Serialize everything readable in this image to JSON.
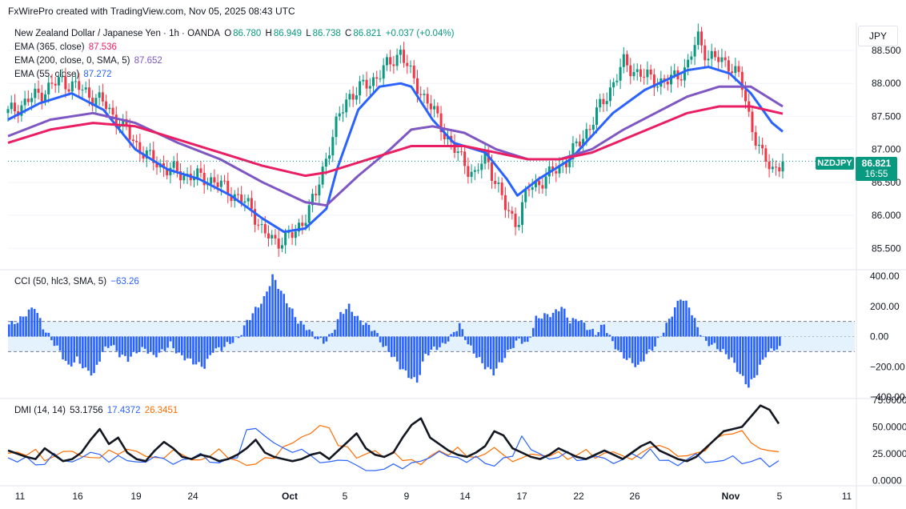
{
  "header": {
    "text": "FxWirePro created with TradingView.com, Nov 05, 2025 08:43 UTC"
  },
  "symbol": {
    "title": "New Zealand Dollar / Japanese Yen · 1h · OANDA",
    "o_label": "O",
    "o": "86.780",
    "h_label": "H",
    "h": "86.949",
    "l_label": "L",
    "l": "86.738",
    "c_label": "C",
    "c": "86.821",
    "change": "+0.037 (+0.04%)",
    "ticker": "NZDJPY",
    "last_price": "86.821",
    "countdown": "16:55",
    "currency": "JPY"
  },
  "indicators": {
    "ema365": {
      "label": "EMA (365, close)",
      "value": "87.536",
      "color": "#e91e63"
    },
    "ema200": {
      "label": "EMA (200, close, 0, SMA, 5)",
      "value": "87.652",
      "color": "#7e57c2"
    },
    "ema55": {
      "label": "EMA (55, close)",
      "value": "87.272",
      "color": "#2962ff"
    },
    "cci": {
      "label": "CCI (50, hlc3, SMA, 5)",
      "value": "−63.26",
      "color": "#2962ff"
    },
    "dmi": {
      "label": "DMI (14, 14)",
      "adx": "53.1756",
      "plus_di": "17.4372",
      "minus_di": "26.3451",
      "adx_color": "#131722",
      "plus_color": "#2962ff",
      "minus_color": "#ff6d00"
    }
  },
  "colors": {
    "up": "#089981",
    "down": "#f23645",
    "cci_fill": "#2962ff",
    "band": "#e3f2fd"
  },
  "chart_data": [
    {
      "type": "candlestick",
      "title": "New Zealand Dollar / Japanese Yen · 1h · OANDA",
      "ylim": [
        85.2,
        88.9
      ],
      "yticks": [
        "88.500",
        "88.000",
        "87.500",
        "87.000",
        "86.500",
        "86.000",
        "85.500"
      ],
      "ytick_values": [
        88.5,
        88.0,
        87.5,
        87.0,
        86.5,
        86.0,
        85.5
      ],
      "xticks": [
        "11",
        "16",
        "19",
        "24",
        "Oct",
        "5",
        "9",
        "14",
        "17",
        "22",
        "26",
        "Nov",
        "5",
        "11"
      ],
      "close_path": [
        [
          0,
          87.55
        ],
        [
          3,
          87.85
        ],
        [
          5,
          88.05
        ],
        [
          7,
          87.9
        ],
        [
          9,
          87.7
        ],
        [
          11,
          87.3
        ],
        [
          13,
          86.9
        ],
        [
          15,
          86.7
        ],
        [
          17,
          86.6
        ],
        [
          19,
          86.55
        ],
        [
          21,
          86.35
        ],
        [
          23,
          86.1
        ],
        [
          24,
          85.75
        ],
        [
          25,
          85.6
        ],
        [
          27,
          85.7
        ],
        [
          29,
          86.3
        ],
        [
          30,
          86.9
        ],
        [
          31,
          87.4
        ],
        [
          32,
          87.8
        ],
        [
          34,
          88.0
        ],
        [
          36,
          88.3
        ],
        [
          37,
          88.5
        ],
        [
          38,
          88.1
        ],
        [
          40,
          87.6
        ],
        [
          41,
          87.3
        ],
        [
          42,
          87.0
        ],
        [
          43,
          86.8
        ],
        [
          44,
          86.6
        ],
        [
          45,
          86.9
        ],
        [
          46,
          86.5
        ],
        [
          47,
          86.05
        ],
        [
          48,
          85.9
        ],
        [
          49,
          86.4
        ],
        [
          51,
          86.6
        ],
        [
          53,
          86.9
        ],
        [
          55,
          87.4
        ],
        [
          57,
          88.0
        ],
        [
          58,
          88.3
        ],
        [
          60,
          88.1
        ],
        [
          62,
          88.0
        ],
        [
          64,
          88.25
        ],
        [
          65,
          88.7
        ],
        [
          66,
          88.4
        ],
        [
          68,
          88.3
        ],
        [
          69,
          88.05
        ],
        [
          70,
          87.4
        ],
        [
          71,
          86.9
        ],
        [
          72,
          86.7
        ],
        [
          73,
          86.82
        ]
      ],
      "series": [
        {
          "name": "EMA (55, close)",
          "values": [
            [
              0,
              87.45
            ],
            [
              3,
              87.7
            ],
            [
              6,
              87.85
            ],
            [
              9,
              87.6
            ],
            [
              12,
              87.0
            ],
            [
              15,
              86.7
            ],
            [
              18,
              86.55
            ],
            [
              21,
              86.3
            ],
            [
              24,
              85.95
            ],
            [
              26,
              85.75
            ],
            [
              28,
              85.8
            ],
            [
              30,
              86.1
            ],
            [
              31,
              86.7
            ],
            [
              33,
              87.6
            ],
            [
              35,
              87.95
            ],
            [
              37,
              88.0
            ],
            [
              38,
              87.95
            ],
            [
              40,
              87.45
            ],
            [
              42,
              87.1
            ],
            [
              45,
              86.95
            ],
            [
              47,
              86.55
            ],
            [
              48,
              86.3
            ],
            [
              50,
              86.55
            ],
            [
              53,
              86.85
            ],
            [
              55,
              87.2
            ],
            [
              57,
              87.55
            ],
            [
              60,
              87.9
            ],
            [
              62,
              88.05
            ],
            [
              64,
              88.2
            ],
            [
              66,
              88.25
            ],
            [
              68,
              88.15
            ],
            [
              70,
              87.85
            ],
            [
              72,
              87.4
            ],
            [
              73,
              87.27
            ]
          ]
        },
        {
          "name": "EMA (200, close, 0, SMA, 5)",
          "values": [
            [
              0,
              87.2
            ],
            [
              4,
              87.45
            ],
            [
              8,
              87.55
            ],
            [
              12,
              87.4
            ],
            [
              16,
              87.1
            ],
            [
              20,
              86.85
            ],
            [
              24,
              86.5
            ],
            [
              28,
              86.2
            ],
            [
              30,
              86.15
            ],
            [
              33,
              86.6
            ],
            [
              36,
              87.0
            ],
            [
              38,
              87.3
            ],
            [
              40,
              87.35
            ],
            [
              43,
              87.25
            ],
            [
              46,
              87.0
            ],
            [
              49,
              86.85
            ],
            [
              52,
              86.85
            ],
            [
              55,
              87.0
            ],
            [
              58,
              87.3
            ],
            [
              61,
              87.55
            ],
            [
              64,
              87.8
            ],
            [
              67,
              87.95
            ],
            [
              70,
              87.95
            ],
            [
              73,
              87.65
            ]
          ]
        },
        {
          "name": "EMA (365, close)",
          "values": [
            [
              0,
              87.1
            ],
            [
              4,
              87.3
            ],
            [
              8,
              87.4
            ],
            [
              12,
              87.35
            ],
            [
              16,
              87.15
            ],
            [
              20,
              86.95
            ],
            [
              24,
              86.75
            ],
            [
              28,
              86.6
            ],
            [
              30,
              86.65
            ],
            [
              33,
              86.8
            ],
            [
              36,
              86.95
            ],
            [
              38,
              87.05
            ],
            [
              40,
              87.05
            ],
            [
              43,
              87.05
            ],
            [
              46,
              86.95
            ],
            [
              49,
              86.85
            ],
            [
              52,
              86.85
            ],
            [
              55,
              86.95
            ],
            [
              58,
              87.15
            ],
            [
              61,
              87.35
            ],
            [
              64,
              87.55
            ],
            [
              67,
              87.65
            ],
            [
              70,
              87.65
            ],
            [
              73,
              87.54
            ]
          ]
        }
      ]
    },
    {
      "type": "bar",
      "title": "CCI (50, hlc3, SMA, 5)",
      "ylim": [
        -400,
        400
      ],
      "yticks": [
        "400.00",
        "200.00",
        "0.00",
        "−200.00",
        "−400.00"
      ],
      "ytick_values": [
        400,
        200,
        0,
        -200,
        -400
      ],
      "bands": [
        100,
        -100
      ],
      "values": [
        80,
        100,
        150,
        200,
        60,
        -20,
        -100,
        -200,
        -150,
        -220,
        -250,
        -100,
        -50,
        -120,
        -150,
        -100,
        -80,
        -130,
        -100,
        -50,
        -120,
        -150,
        -180,
        -200,
        -90,
        -80,
        -40,
        -10,
        100,
        180,
        250,
        400,
        300,
        200,
        100,
        60,
        0,
        -40,
        20,
        150,
        200,
        120,
        80,
        40,
        -60,
        -120,
        -200,
        -260,
        -300,
        -120,
        -80,
        -60,
        0,
        80,
        -50,
        -130,
        -200,
        -240,
        -160,
        -80,
        -20,
        -50,
        120,
        140,
        150,
        200,
        100,
        120,
        60,
        20,
        80,
        -40,
        -120,
        -160,
        -200,
        -120,
        -60,
        40,
        150,
        260,
        200,
        60,
        -40,
        -60,
        -100,
        -150,
        -250,
        -330,
        -240,
        -120,
        -80
      ]
    },
    {
      "type": "line",
      "title": "DMI (14, 14)",
      "ylim": [
        -5,
        75
      ],
      "yticks": [
        "75.0000",
        "50.0000",
        "25.0000",
        "0.0000"
      ],
      "ytick_values": [
        75,
        50,
        25,
        0
      ],
      "series": [
        {
          "name": "ADX",
          "values": [
            28,
            25,
            22,
            20,
            30,
            24,
            18,
            20,
            26,
            38,
            48,
            34,
            40,
            26,
            20,
            18,
            28,
            36,
            30,
            22,
            20,
            24,
            22,
            18,
            20,
            24,
            30,
            38,
            26,
            22,
            20,
            18,
            20,
            24,
            26,
            20,
            28,
            36,
            44,
            30,
            24,
            22,
            26,
            40,
            52,
            58,
            40,
            34,
            28,
            24,
            22,
            26,
            32,
            46,
            42,
            30,
            26,
            22,
            20,
            24,
            30,
            26,
            22,
            20,
            24,
            28,
            24,
            20,
            26,
            32,
            36,
            28,
            24,
            20,
            18,
            22,
            30,
            38,
            46,
            48,
            50,
            60,
            70,
            66,
            53
          ]
        },
        {
          "name": "+DI",
          "values": [
            20,
            18,
            22,
            14,
            16,
            24,
            20,
            16,
            22,
            26,
            24,
            18,
            22,
            20,
            16,
            18,
            22,
            20,
            16,
            18,
            22,
            24,
            18,
            16,
            20,
            22,
            46,
            50,
            40,
            36,
            30,
            26,
            30,
            22,
            18,
            16,
            20,
            18,
            14,
            10,
            8,
            12,
            14,
            12,
            16,
            18,
            22,
            26,
            24,
            20,
            18,
            22,
            16,
            14,
            20,
            24,
            40,
            30,
            24,
            20,
            22,
            26,
            20,
            18,
            24,
            20,
            16,
            20,
            24,
            22,
            28,
            20,
            18,
            14,
            20,
            24,
            18,
            16,
            20,
            22,
            16,
            18,
            20,
            14,
            17
          ]
        },
        {
          "name": "−DI",
          "values": [
            24,
            28,
            22,
            30,
            18,
            22,
            28,
            26,
            24,
            20,
            22,
            28,
            24,
            30,
            26,
            24,
            20,
            22,
            28,
            24,
            20,
            18,
            24,
            28,
            22,
            18,
            14,
            16,
            20,
            22,
            30,
            36,
            40,
            44,
            52,
            48,
            34,
            30,
            22,
            24,
            28,
            22,
            26,
            20,
            18,
            16,
            22,
            28,
            24,
            30,
            24,
            20,
            26,
            30,
            24,
            18,
            20,
            26,
            22,
            24,
            26,
            20,
            24,
            28,
            22,
            24,
            28,
            22,
            20,
            26,
            30,
            34,
            28,
            24,
            22,
            26,
            28,
            38,
            44,
            42,
            48,
            34,
            30,
            28,
            26
          ]
        }
      ]
    }
  ]
}
